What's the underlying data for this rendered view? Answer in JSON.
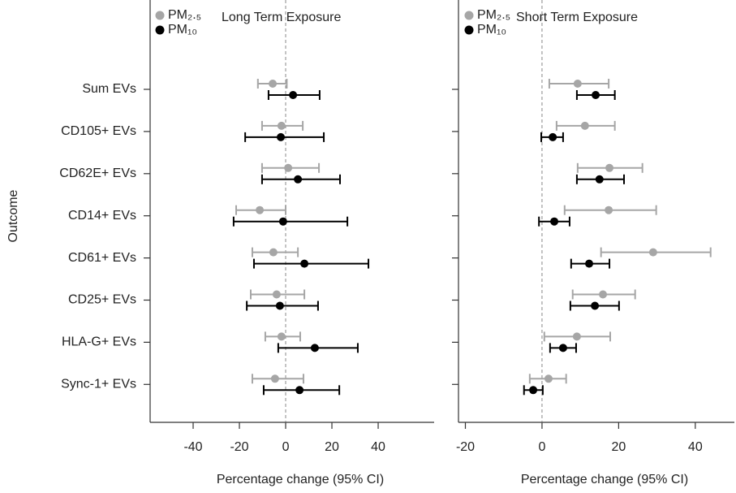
{
  "chart_data": [
    {
      "type": "forest",
      "title": "Long Term Exposure",
      "x_label": "Percentage change (95% CI)",
      "y_label": "Outcome",
      "categories": [
        "Sum EVs",
        "CD105+ EVs",
        "CD62E+ EVs",
        "CD14+ EVs",
        "CD61+ EVs",
        "CD25+ EVs",
        "HLA-G+ EVs",
        "Sync-1+ EVs"
      ],
      "series": [
        {
          "name": "PM₂.₅",
          "color": "#a6a6a6",
          "values": [
            -5.6,
            -1.8,
            1.1,
            -11.2,
            -5.3,
            -3.9,
            -1.8,
            -4.6
          ],
          "lower": [
            -12,
            -10.2,
            -10.2,
            -21.4,
            -14.4,
            -15.1,
            -8.8,
            -14.4
          ],
          "upper": [
            0.5,
            7.4,
            14.4,
            0,
            5.3,
            8.1,
            6.3,
            7.7
          ]
        },
        {
          "name": "PM₁₀",
          "color": "#000000",
          "values": [
            3.2,
            -2.1,
            5.3,
            -1.1,
            8.1,
            -2.5,
            12.6,
            6.0
          ],
          "lower": [
            -7.4,
            -17.5,
            -10.2,
            -22.5,
            -13.7,
            -16.8,
            -3.2,
            -9.5
          ],
          "upper": [
            14.7,
            16.5,
            23.5,
            26.7,
            35.8,
            14.0,
            31.2,
            23.2
          ]
        }
      ],
      "ref_line": 0,
      "xlim": [
        -58.6,
        64.2
      ],
      "xticks": [
        -40,
        -20,
        0,
        20,
        40
      ]
    },
    {
      "type": "forest",
      "title": "Short Term Exposure",
      "x_label": "Percentage change (95% CI)",
      "series": [
        {
          "name": "PM₂.₅",
          "color": "#a6a6a6",
          "values": [
            9.3,
            11.2,
            17.6,
            17.4,
            29.0,
            15.9,
            9.1,
            1.7
          ],
          "lower": [
            1.9,
            3.8,
            9.3,
            5.9,
            15.4,
            8.0,
            0.6,
            -3.2
          ],
          "upper": [
            17.4,
            19.0,
            26.2,
            29.8,
            44.0,
            24.3,
            17.8,
            6.3
          ]
        },
        {
          "name": "PM₁₀",
          "color": "#000000",
          "values": [
            14.0,
            2.8,
            15.0,
            3.2,
            12.3,
            13.8,
            5.5,
            -2.3
          ],
          "lower": [
            9.1,
            -0.2,
            9.1,
            -0.8,
            7.6,
            7.4,
            2.1,
            -4.7
          ],
          "upper": [
            19.0,
            5.5,
            21.4,
            7.2,
            17.6,
            20.1,
            8.9,
            0.2
          ]
        }
      ],
      "ref_line": 0,
      "xlim": [
        -21.8,
        50.2
      ],
      "xticks": [
        -20,
        0,
        20,
        40
      ]
    }
  ]
}
